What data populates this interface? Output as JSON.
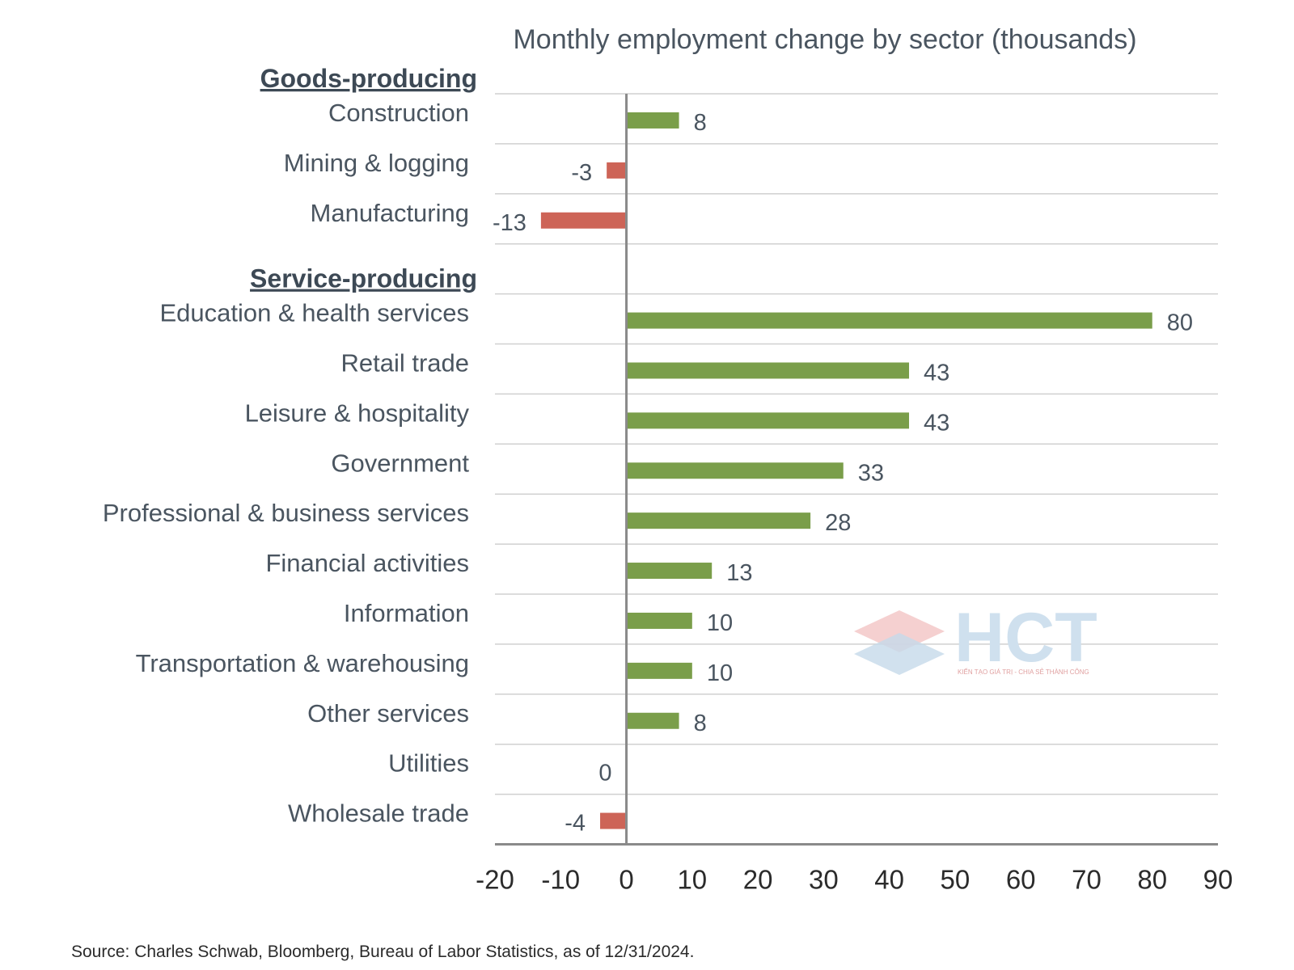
{
  "chart_data": {
    "type": "bar",
    "orientation": "horizontal",
    "title": "Monthly employment change by sector (thousands)",
    "groups": [
      {
        "label": "Goods-producing",
        "categories": [
          "Construction",
          "Mining & logging",
          "Manufacturing"
        ],
        "values": [
          8,
          -3,
          -13
        ]
      },
      {
        "label": "Service-producing",
        "categories": [
          "Education & health services",
          "Retail trade",
          "Leisure & hospitality",
          "Government",
          "Professional & business services",
          "Financial activities",
          "Information",
          "Transportation & warehousing",
          "Other services",
          "Utilities",
          "Wholesale trade"
        ],
        "values": [
          80,
          43,
          43,
          33,
          28,
          13,
          10,
          10,
          8,
          0,
          -4
        ]
      }
    ],
    "xlim": [
      -20,
      90
    ],
    "xticks": [
      -20,
      -10,
      0,
      10,
      20,
      30,
      40,
      50,
      60,
      70,
      80,
      90
    ],
    "xtick_labels": [
      "-20",
      "-10",
      "0",
      "10",
      "20",
      "30",
      "40",
      "50",
      "60",
      "70",
      "80",
      "90"
    ],
    "positive_color": "#7a9e4a",
    "negative_color": "#cd6457",
    "gridlines": true
  },
  "source": "Source: Charles Schwab, Bloomberg, Bureau of Labor Statistics, as of 12/31/2024.",
  "watermark": {
    "text": "HCT",
    "tagline": "KIẾN TẠO GIÁ TRỊ - CHIA SẺ THÀNH CÔNG"
  }
}
